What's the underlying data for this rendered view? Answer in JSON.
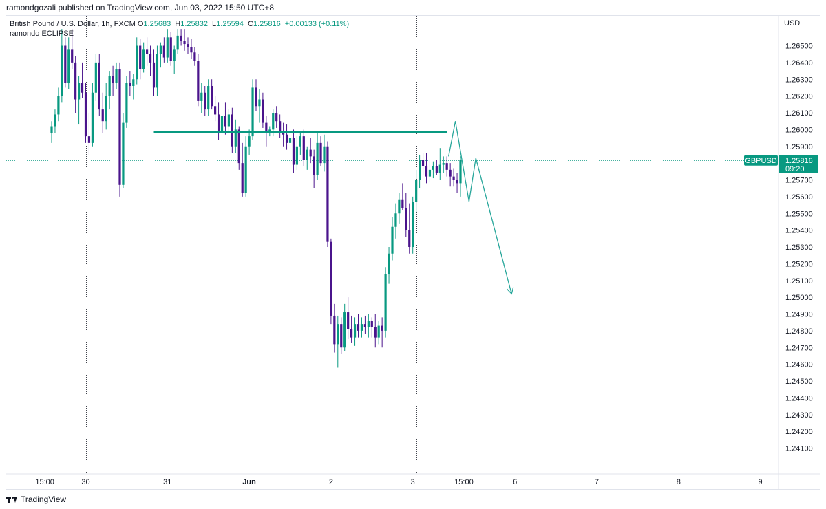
{
  "header": {
    "publisher_text": "ramondgozali published on TradingView.com, Jun 03, 2022 15:50 UTC+8"
  },
  "legend": {
    "symbol_text": "British Pound / U.S. Dollar, 1h, FXCM",
    "open_key": "O",
    "open_value": "1.25683",
    "high_key": "H",
    "high_value": "1.25832",
    "low_key": "L",
    "low_value": "1.25594",
    "close_key": "C",
    "close_value": "1.25816",
    "change_text": "+0.00133 (+0.11%)",
    "indicator_text": "ramondo ECLIPSE"
  },
  "footer": {
    "brand_text": "TradingView"
  },
  "colors": {
    "up": "#089981",
    "down": "#4a148c",
    "level": "#089981",
    "projection": "#26a69a",
    "grid_separator": "#131722",
    "price_line": "#089981"
  },
  "chart_data": {
    "type": "candlestick",
    "symbol": "GBPUSD",
    "title": "British Pound / U.S. Dollar, 1h, FXCM",
    "currency": "USD",
    "ylim": [
      1.2402,
      1.2658
    ],
    "y_ticks": [
      "1.26500",
      "1.26400",
      "1.26300",
      "1.26200",
      "1.26100",
      "1.26000",
      "1.25900",
      "1.25700",
      "1.25600",
      "1.25500",
      "1.25400",
      "1.25300",
      "1.25200",
      "1.25100",
      "1.25000",
      "1.24900",
      "1.24800",
      "1.24700",
      "1.24600",
      "1.24500",
      "1.24400",
      "1.24300",
      "1.24200",
      "1.24100"
    ],
    "x_ticks": [
      {
        "label": "15:00",
        "index": -12
      },
      {
        "label": "30",
        "index": 0
      },
      {
        "label": "31",
        "index": 24
      },
      {
        "label": "Jun",
        "index": 48
      },
      {
        "label": "2",
        "index": 72
      },
      {
        "label": "3",
        "index": 96
      },
      {
        "label": "15:00",
        "index": 111
      },
      {
        "label": "6",
        "index": 126
      },
      {
        "label": "7",
        "index": 150
      },
      {
        "label": "8",
        "index": 174
      },
      {
        "label": "9",
        "index": 198
      }
    ],
    "session_separators": [
      0,
      25,
      49,
      73,
      97
    ],
    "current_price": {
      "label": "GBPUSD",
      "value": "1.25816",
      "countdown": "09:20",
      "price": 1.25816
    },
    "resistance_level": {
      "price": 1.25985,
      "from_index": 20,
      "to_index": 106
    },
    "projection_path": [
      {
        "index": 106.5,
        "price": 1.2584
      },
      {
        "index": 108.5,
        "price": 1.2605
      },
      {
        "index": 112.5,
        "price": 1.2557
      },
      {
        "index": 114.5,
        "price": 1.2583
      },
      {
        "index": 125.0,
        "price": 1.2502
      }
    ],
    "candles": [
      [
        1.2598,
        1.2605,
        1.2592,
        1.2602
      ],
      [
        1.2602,
        1.2612,
        1.2598,
        1.2609
      ],
      [
        1.2609,
        1.2625,
        1.2605,
        1.262
      ],
      [
        1.262,
        1.266,
        1.2616,
        1.265
      ],
      [
        1.265,
        1.2655,
        1.2625,
        1.2628
      ],
      [
        1.2628,
        1.2655,
        1.2624,
        1.2648
      ],
      [
        1.2648,
        1.266,
        1.2636,
        1.264
      ],
      [
        1.264,
        1.2644,
        1.261,
        1.2618
      ],
      [
        1.2618,
        1.2632,
        1.2603,
        1.2628
      ],
      [
        1.2628,
        1.264,
        1.2619,
        1.2622
      ],
      [
        1.2622,
        1.2628,
        1.2592,
        1.2596
      ],
      [
        1.2596,
        1.261,
        1.2585,
        1.2592
      ],
      [
        1.2592,
        1.2628,
        1.259,
        1.2622
      ],
      [
        1.2622,
        1.2645,
        1.2617,
        1.264
      ],
      [
        1.264,
        1.2645,
        1.2608,
        1.2612
      ],
      [
        1.2612,
        1.2622,
        1.2598,
        1.2605
      ],
      [
        1.2605,
        1.2628,
        1.26,
        1.262
      ],
      [
        1.262,
        1.2635,
        1.2612,
        1.2632
      ],
      [
        1.2632,
        1.2638,
        1.262,
        1.2628
      ],
      [
        1.2628,
        1.264,
        1.2624,
        1.2636
      ],
      [
        1.2636,
        1.264,
        1.256,
        1.2567
      ],
      [
        1.2567,
        1.261,
        1.2565,
        1.2604
      ],
      [
        1.2604,
        1.2632,
        1.2601,
        1.2628
      ],
      [
        1.2628,
        1.2635,
        1.262,
        1.2626
      ],
      [
        1.2626,
        1.2633,
        1.2618,
        1.263
      ],
      [
        1.263,
        1.2655,
        1.2627,
        1.265
      ],
      [
        1.265,
        1.2654,
        1.263,
        1.2636
      ],
      [
        1.2636,
        1.2652,
        1.2634,
        1.2648
      ],
      [
        1.2648,
        1.2655,
        1.2638,
        1.2645
      ],
      [
        1.2645,
        1.265,
        1.2632,
        1.264
      ],
      [
        1.264,
        1.2648,
        1.262,
        1.2625
      ],
      [
        1.2625,
        1.265,
        1.262,
        1.2645
      ],
      [
        1.2645,
        1.2652,
        1.2637,
        1.265
      ],
      [
        1.265,
        1.2655,
        1.264,
        1.2643
      ],
      [
        1.2643,
        1.266,
        1.264,
        1.2655
      ],
      [
        1.2655,
        1.2658,
        1.2638,
        1.2641
      ],
      [
        1.2641,
        1.265,
        1.2633,
        1.2648
      ],
      [
        1.2648,
        1.266,
        1.2645,
        1.2656
      ],
      [
        1.2656,
        1.266,
        1.265,
        1.2653
      ],
      [
        1.2653,
        1.266,
        1.2647,
        1.2651
      ],
      [
        1.2651,
        1.2655,
        1.2645,
        1.2649
      ],
      [
        1.2649,
        1.2654,
        1.2642,
        1.2646
      ],
      [
        1.2646,
        1.2649,
        1.2638,
        1.2641
      ],
      [
        1.2641,
        1.2645,
        1.2614,
        1.2617
      ],
      [
        1.2617,
        1.2628,
        1.261,
        1.2622
      ],
      [
        1.2622,
        1.2626,
        1.2608,
        1.2612
      ],
      [
        1.2612,
        1.263,
        1.2608,
        1.2626
      ],
      [
        1.2626,
        1.263,
        1.2612,
        1.2614
      ],
      [
        1.2614,
        1.262,
        1.2605,
        1.2609
      ],
      [
        1.2609,
        1.2616,
        1.2594,
        1.2598
      ],
      [
        1.2598,
        1.2612,
        1.2595,
        1.2608
      ],
      [
        1.2608,
        1.2616,
        1.2597,
        1.2602
      ],
      [
        1.2602,
        1.2612,
        1.2598,
        1.2609
      ],
      [
        1.2609,
        1.2613,
        1.2586,
        1.259
      ],
      [
        1.259,
        1.2606,
        1.2586,
        1.26
      ],
      [
        1.26,
        1.2602,
        1.2576,
        1.258
      ],
      [
        1.258,
        1.2592,
        1.256,
        1.2562
      ],
      [
        1.2562,
        1.2596,
        1.256,
        1.259
      ],
      [
        1.259,
        1.26,
        1.2585,
        1.2596
      ],
      [
        1.2596,
        1.263,
        1.2594,
        1.2625
      ],
      [
        1.2625,
        1.263,
        1.2611,
        1.2614
      ],
      [
        1.2614,
        1.2624,
        1.2604,
        1.2618
      ],
      [
        1.2618,
        1.2622,
        1.2601,
        1.2604
      ],
      [
        1.2604,
        1.2608,
        1.259,
        1.2598
      ],
      [
        1.2598,
        1.2602,
        1.2596,
        1.26
      ],
      [
        1.26,
        1.2612,
        1.2596,
        1.261
      ],
      [
        1.261,
        1.2614,
        1.2601,
        1.2605
      ],
      [
        1.2605,
        1.2609,
        1.2595,
        1.2599
      ],
      [
        1.2599,
        1.2604,
        1.259,
        1.2597
      ],
      [
        1.2597,
        1.2603,
        1.2588,
        1.2592
      ],
      [
        1.2592,
        1.2598,
        1.2582,
        1.2595
      ],
      [
        1.2595,
        1.26,
        1.2574,
        1.2579
      ],
      [
        1.2579,
        1.2596,
        1.2576,
        1.259
      ],
      [
        1.259,
        1.2599,
        1.2585,
        1.2596
      ],
      [
        1.2596,
        1.26,
        1.2578,
        1.2582
      ],
      [
        1.2582,
        1.259,
        1.2576,
        1.2588
      ],
      [
        1.2588,
        1.2595,
        1.258,
        1.2584
      ],
      [
        1.2584,
        1.2588,
        1.2565,
        1.2573
      ],
      [
        1.2573,
        1.2598,
        1.257,
        1.2592
      ],
      [
        1.2592,
        1.2596,
        1.2578,
        1.258
      ],
      [
        1.258,
        1.2597,
        1.2575,
        1.259
      ],
      [
        1.259,
        1.2593,
        1.253,
        1.2533
      ],
      [
        1.2533,
        1.2535,
        1.2484,
        1.2489
      ],
      [
        1.2489,
        1.2496,
        1.2467,
        1.2472
      ],
      [
        1.2472,
        1.2489,
        1.2458,
        1.2484
      ],
      [
        1.2484,
        1.2488,
        1.2466,
        1.247
      ],
      [
        1.247,
        1.2496,
        1.2468,
        1.2491
      ],
      [
        1.2491,
        1.25,
        1.2475,
        1.2481
      ],
      [
        1.2481,
        1.2489,
        1.2473,
        1.2476
      ],
      [
        1.2476,
        1.2488,
        1.2471,
        1.2484
      ],
      [
        1.2484,
        1.249,
        1.2476,
        1.248
      ],
      [
        1.248,
        1.2488,
        1.2476,
        1.2484
      ],
      [
        1.2484,
        1.2489,
        1.2478,
        1.2482
      ],
      [
        1.2482,
        1.249,
        1.2476,
        1.2486
      ],
      [
        1.2486,
        1.2488,
        1.2476,
        1.2482
      ],
      [
        1.2482,
        1.249,
        1.247,
        1.2476
      ],
      [
        1.2476,
        1.2486,
        1.2472,
        1.2483
      ],
      [
        1.2483,
        1.2488,
        1.247,
        1.248
      ],
      [
        1.248,
        1.2518,
        1.2476,
        1.2514
      ],
      [
        1.2514,
        1.253,
        1.2508,
        1.2526
      ],
      [
        1.2526,
        1.2548,
        1.2522,
        1.2542
      ],
      [
        1.2542,
        1.2556,
        1.2535,
        1.255
      ],
      [
        1.255,
        1.2562,
        1.2544,
        1.2558
      ],
      [
        1.2558,
        1.2568,
        1.2552,
        1.2553
      ],
      [
        1.2553,
        1.2562,
        1.2536,
        1.254
      ],
      [
        1.254,
        1.2556,
        1.2526,
        1.253
      ],
      [
        1.253,
        1.256,
        1.2526,
        1.2557
      ],
      [
        1.2557,
        1.2576,
        1.255,
        1.257
      ],
      [
        1.257,
        1.2585,
        1.2565,
        1.2582
      ],
      [
        1.2582,
        1.2586,
        1.2573,
        1.2578
      ],
      [
        1.2578,
        1.2586,
        1.2568,
        1.2572
      ],
      [
        1.2572,
        1.2582,
        1.2569,
        1.2576
      ],
      [
        1.2576,
        1.2581,
        1.2571,
        1.2578
      ],
      [
        1.2578,
        1.2582,
        1.2573,
        1.2574
      ],
      [
        1.2574,
        1.2589,
        1.257,
        1.2579
      ],
      [
        1.2579,
        1.2584,
        1.2574,
        1.258
      ],
      [
        1.258,
        1.2584,
        1.2572,
        1.2576
      ],
      [
        1.2576,
        1.258,
        1.2566,
        1.2572
      ],
      [
        1.2572,
        1.2577,
        1.2566,
        1.257
      ],
      [
        1.257,
        1.2574,
        1.2562,
        1.2568
      ],
      [
        1.2568,
        1.2584,
        1.256,
        1.2582
      ]
    ]
  }
}
